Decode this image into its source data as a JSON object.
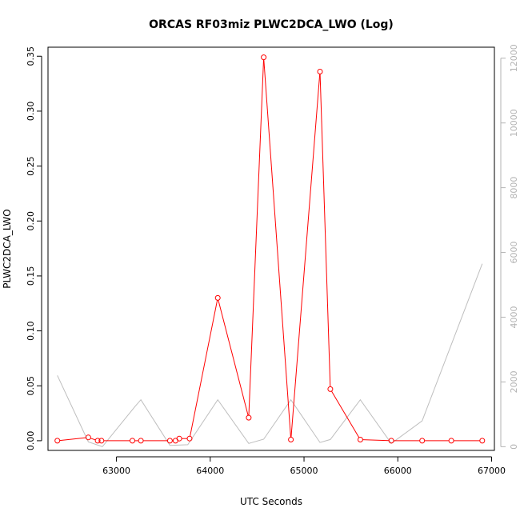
{
  "chart_data": {
    "type": "line",
    "title": "ORCAS RF03miz PLWC2DCA_LWO (Log)",
    "xlabel": "UTC Seconds",
    "ylabel": "PLWC2DCA_LWO",
    "xlim": [
      62270,
      67030
    ],
    "ylim": [
      -0.0088,
      0.3582
    ],
    "y2lim": [
      -115,
      12340
    ],
    "x_ticks": [
      63000,
      64000,
      65000,
      66000,
      67000
    ],
    "y_ticks": [
      0.0,
      0.05,
      0.1,
      0.15,
      0.2,
      0.25,
      0.3,
      0.35
    ],
    "y2_ticks": [
      0,
      2000,
      4000,
      6000,
      8000,
      10000,
      12000
    ],
    "grid": false,
    "legend": "none",
    "colors": {
      "primary": "#ff0000",
      "secondary": "#bebebe",
      "axis": "#000000",
      "right_axis": "#b3b3b3"
    },
    "series": [
      {
        "axis": "left",
        "style": "line+circles",
        "x": [
          62370,
          62700,
          62800,
          62840,
          63170,
          63260,
          63570,
          63630,
          63670,
          63780,
          64080,
          64410,
          64570,
          64860,
          65170,
          65280,
          65600,
          65930,
          66260,
          66570,
          66900
        ],
        "y": [
          0.0,
          0.003,
          0.0,
          0.0,
          0.0,
          0.0,
          0.0,
          0.0,
          0.002,
          0.002,
          0.13,
          0.021,
          0.349,
          0.001,
          0.336,
          0.047,
          0.001,
          0.0,
          0.0,
          0.0,
          0.0
        ]
      },
      {
        "axis": "right",
        "style": "line",
        "x": [
          62370,
          62700,
          62850,
          63200,
          63260,
          63570,
          63760,
          64080,
          64410,
          64570,
          64860,
          65170,
          65280,
          65600,
          65930,
          66260,
          66900
        ],
        "y": [
          2200,
          150,
          0,
          1250,
          1450,
          40,
          60,
          1450,
          100,
          230,
          1450,
          130,
          220,
          1450,
          100,
          800,
          5650
        ]
      }
    ]
  }
}
